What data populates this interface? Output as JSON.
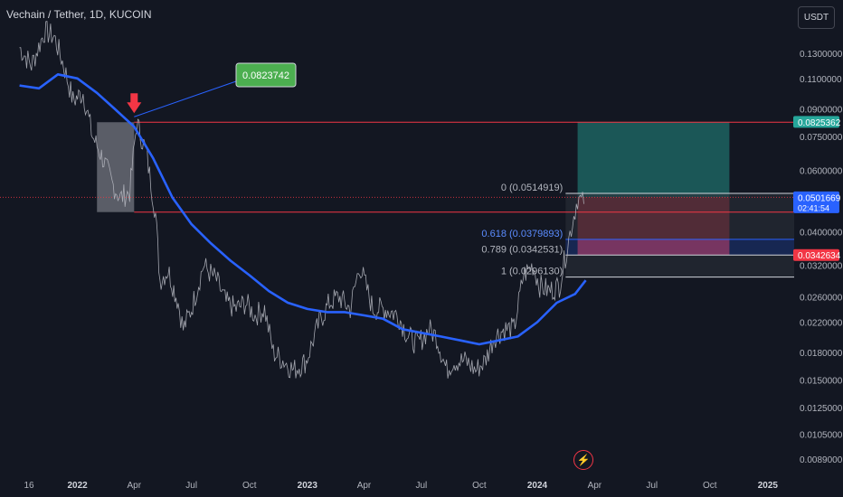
{
  "header": {
    "title": "Vechain / Tether, 1D, KUCOIN",
    "currency_button": "USDT"
  },
  "colors": {
    "background": "#131722",
    "price_line": "#b2b5be",
    "moving_average": "#2962ff",
    "resistance_line": "#f23645",
    "profit_zone": "#26a69a",
    "loss_zone": "#f23645",
    "callout_green": "#4caf50",
    "arrow_red": "#f23645"
  },
  "chart_data": {
    "type": "line",
    "scale": "log",
    "y_ticks": [
      "0.1300000",
      "0.1100000",
      "0.0900000",
      "0.0750000",
      "0.0600000",
      "0.0400000",
      "0.0320000",
      "0.0260000",
      "0.0220000",
      "0.0180000",
      "0.0150000",
      "0.0125000",
      "0.0105000",
      "0.0089000"
    ],
    "y_tick_values": [
      0.13,
      0.11,
      0.09,
      0.075,
      0.06,
      0.04,
      0.032,
      0.026,
      0.022,
      0.018,
      0.015,
      0.0125,
      0.0105,
      0.0089
    ],
    "x_ticks": [
      {
        "label": "16",
        "date": "2021-10-16"
      },
      {
        "label": "2022",
        "date": "2022-01-01",
        "bold": true
      },
      {
        "label": "Apr",
        "date": "2022-04-01"
      },
      {
        "label": "Jul",
        "date": "2022-07-01"
      },
      {
        "label": "Oct",
        "date": "2022-10-01"
      },
      {
        "label": "2023",
        "date": "2023-01-01",
        "bold": true
      },
      {
        "label": "Apr",
        "date": "2023-04-01"
      },
      {
        "label": "Jul",
        "date": "2023-07-01"
      },
      {
        "label": "Oct",
        "date": "2023-10-01"
      },
      {
        "label": "2024",
        "date": "2024-01-01",
        "bold": true
      },
      {
        "label": "Apr",
        "date": "2024-04-01"
      },
      {
        "label": "Jul",
        "date": "2024-07-01"
      },
      {
        "label": "Oct",
        "date": "2024-10-01"
      },
      {
        "label": "2025",
        "date": "2025-01-01",
        "bold": true
      }
    ],
    "price_series": {
      "x": [
        "2021-10-01",
        "2021-10-20",
        "2021-11-10",
        "2021-11-25",
        "2021-12-10",
        "2021-12-25",
        "2022-01-10",
        "2022-01-25",
        "2022-02-10",
        "2022-02-25",
        "2022-03-10",
        "2022-03-25",
        "2022-04-05",
        "2022-04-20",
        "2022-05-05",
        "2022-05-12",
        "2022-05-25",
        "2022-06-10",
        "2022-06-18",
        "2022-07-01",
        "2022-07-20",
        "2022-08-10",
        "2022-08-25",
        "2022-09-10",
        "2022-09-25",
        "2022-10-10",
        "2022-10-25",
        "2022-11-08",
        "2022-11-25",
        "2022-12-10",
        "2022-12-30",
        "2023-01-20",
        "2023-02-05",
        "2023-02-20",
        "2023-03-10",
        "2023-03-25",
        "2023-04-15",
        "2023-05-05",
        "2023-05-25",
        "2023-06-10",
        "2023-06-25",
        "2023-07-13",
        "2023-07-25",
        "2023-08-10",
        "2023-08-20",
        "2023-09-10",
        "2023-09-25",
        "2023-10-10",
        "2023-10-25",
        "2023-11-10",
        "2023-11-25",
        "2023-12-10",
        "2023-12-25",
        "2024-01-05",
        "2024-01-20",
        "2024-02-05",
        "2024-02-20",
        "2024-03-05",
        "2024-03-15"
      ],
      "values": [
        0.135,
        0.12,
        0.15,
        0.145,
        0.12,
        0.095,
        0.1,
        0.075,
        0.065,
        0.055,
        0.05,
        0.052,
        0.082,
        0.068,
        0.045,
        0.029,
        0.031,
        0.025,
        0.021,
        0.024,
        0.032,
        0.029,
        0.025,
        0.024,
        0.025,
        0.023,
        0.024,
        0.018,
        0.017,
        0.016,
        0.017,
        0.022,
        0.025,
        0.026,
        0.024,
        0.032,
        0.024,
        0.024,
        0.023,
        0.02,
        0.019,
        0.021,
        0.02,
        0.016,
        0.017,
        0.017,
        0.016,
        0.017,
        0.02,
        0.021,
        0.021,
        0.03,
        0.032,
        0.028,
        0.027,
        0.028,
        0.038,
        0.05,
        0.048
      ]
    },
    "moving_average": {
      "x": [
        "2021-10-01",
        "2021-11-01",
        "2021-12-01",
        "2022-01-01",
        "2022-02-01",
        "2022-03-01",
        "2022-04-01",
        "2022-05-01",
        "2022-06-01",
        "2022-07-01",
        "2022-08-01",
        "2022-09-01",
        "2022-10-01",
        "2022-11-01",
        "2022-12-01",
        "2023-01-01",
        "2023-02-01",
        "2023-03-01",
        "2023-04-01",
        "2023-05-01",
        "2023-06-01",
        "2023-07-01",
        "2023-08-01",
        "2023-09-01",
        "2023-10-01",
        "2023-11-01",
        "2023-12-01",
        "2024-01-01",
        "2024-02-01",
        "2024-03-01",
        "2024-03-18"
      ],
      "values": [
        0.105,
        0.103,
        0.113,
        0.11,
        0.1,
        0.09,
        0.08,
        0.065,
        0.05,
        0.042,
        0.037,
        0.033,
        0.03,
        0.027,
        0.025,
        0.024,
        0.0235,
        0.0235,
        0.023,
        0.0225,
        0.021,
        0.0205,
        0.02,
        0.0195,
        0.019,
        0.0195,
        0.02,
        0.022,
        0.025,
        0.0265,
        0.029
      ]
    },
    "resistance_line": {
      "value": 0.0823742,
      "from": "2022-04-01"
    },
    "support_line": {
      "value": 0.0455,
      "from": "2022-04-01"
    },
    "consolidation_box": {
      "from": "2022-02-01",
      "to": "2022-04-01",
      "top": 0.0823742,
      "bottom": 0.0455
    },
    "callout_label": "0.0823742",
    "arrow_marker": {
      "date": "2022-04-01",
      "value": 0.0823742
    },
    "fib_levels": [
      {
        "label": "0 (0.0514919)",
        "value": 0.0514919
      },
      {
        "label": "0.618 (0.0379893)",
        "value": 0.0379893
      },
      {
        "label": "0.789 (0.0342531)",
        "value": 0.0342531
      },
      {
        "label": "1 (0.0296130)",
        "value": 0.029613
      }
    ],
    "position": {
      "from": "2024-03-05",
      "to": "2024-11-01",
      "entry": 0.0501669,
      "target": 0.0825362,
      "stop": 0.0342634
    },
    "price_labels": [
      {
        "text": "0.0825362",
        "value": 0.0825362,
        "color": "#26a69a"
      },
      {
        "text": "0.0501669",
        "value": 0.0501669,
        "color": "#2962ff",
        "countdown": "02:41:54"
      },
      {
        "text": "0.0342634",
        "value": 0.0342634,
        "color": "#f23645"
      }
    ]
  }
}
